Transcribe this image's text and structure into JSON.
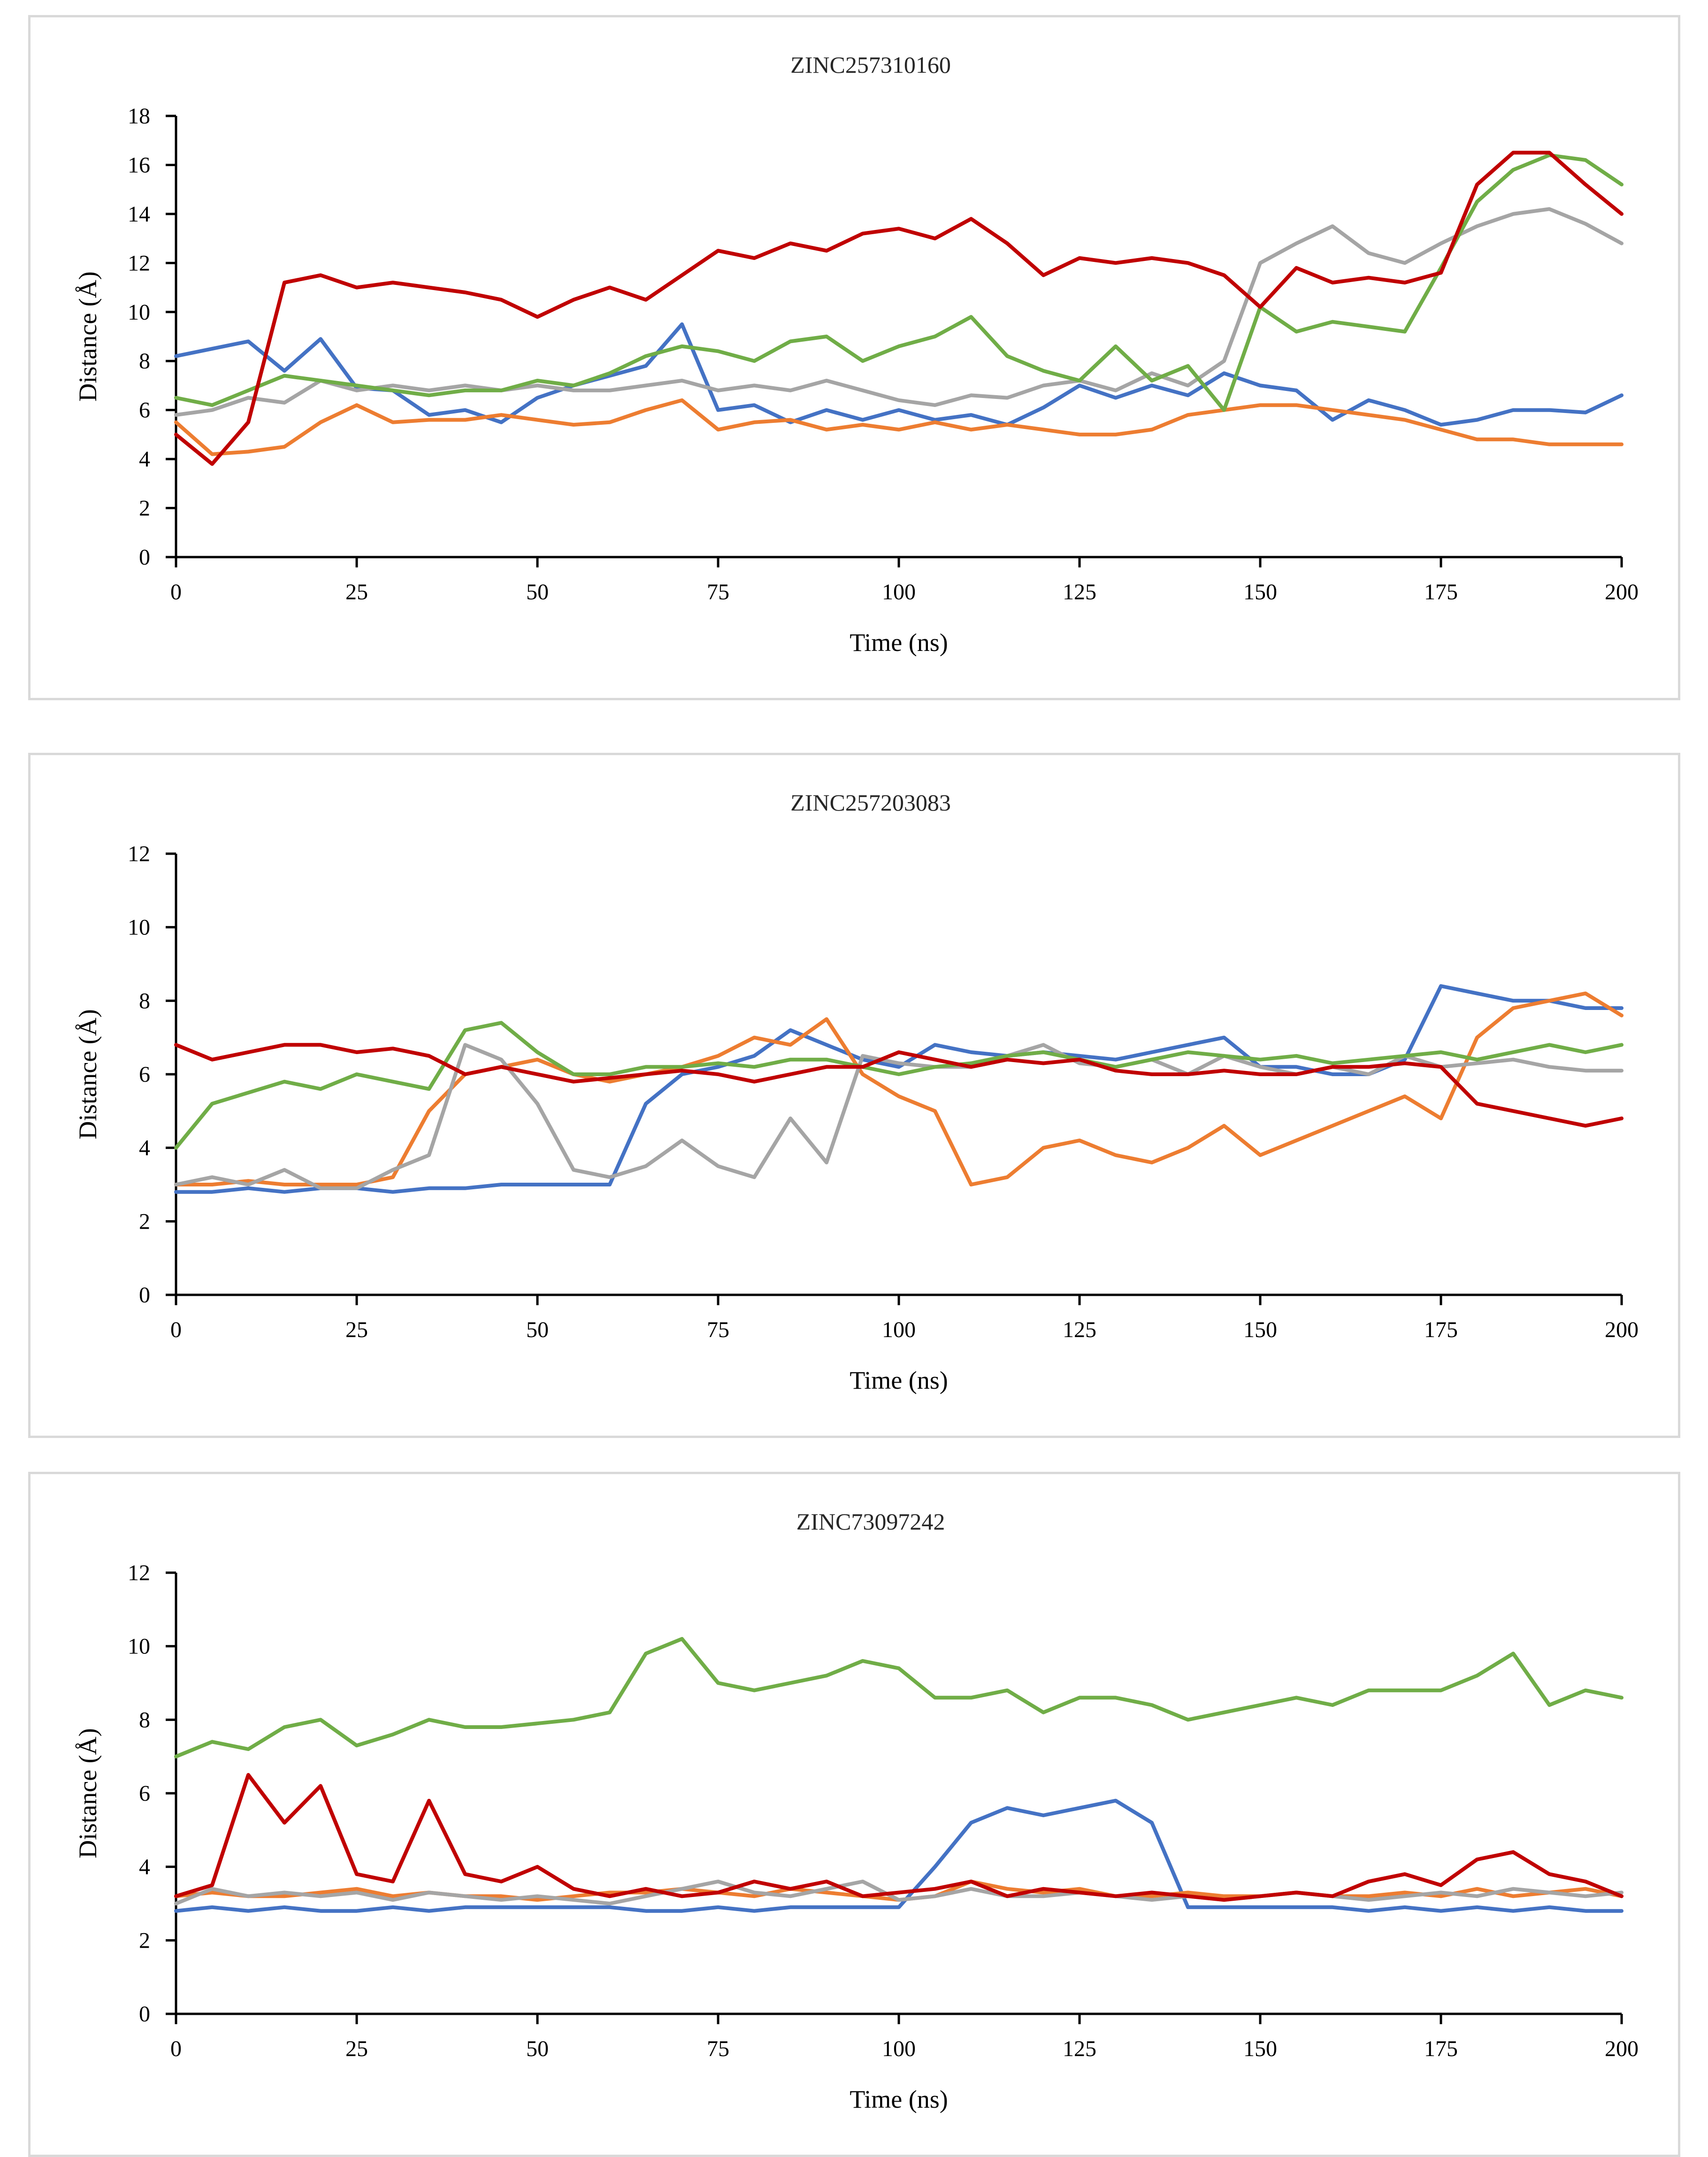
{
  "chart_data": [
    {
      "type": "line",
      "title": "ZINC257310160",
      "xlabel": "Time (ns)",
      "ylabel": "Distance (Å)",
      "xlim": [
        0,
        200
      ],
      "ylim": [
        0,
        18
      ],
      "xticks": [
        0,
        25,
        50,
        75,
        100,
        125,
        150,
        175,
        200
      ],
      "yticks": [
        0,
        2,
        4,
        6,
        8,
        10,
        12,
        14,
        16,
        18
      ],
      "x": [
        0,
        5,
        10,
        15,
        20,
        25,
        30,
        35,
        40,
        45,
        50,
        55,
        60,
        65,
        70,
        75,
        80,
        85,
        90,
        95,
        100,
        105,
        110,
        115,
        120,
        125,
        130,
        135,
        140,
        145,
        150,
        155,
        160,
        165,
        170,
        175,
        180,
        185,
        190,
        195,
        200
      ],
      "series": [
        {
          "name": "blue",
          "color": "#4472C4",
          "values": [
            8.2,
            8.5,
            8.8,
            7.6,
            8.9,
            6.9,
            6.8,
            5.8,
            6.0,
            5.5,
            6.5,
            7.0,
            7.4,
            7.8,
            9.5,
            6.0,
            6.2,
            5.5,
            6.0,
            5.6,
            6.0,
            5.6,
            5.8,
            5.4,
            6.1,
            7.0,
            6.5,
            7.0,
            6.6,
            7.5,
            7.0,
            6.8,
            5.6,
            6.4,
            6.0,
            5.4,
            5.6,
            6.0,
            6.0,
            5.9,
            6.6
          ]
        },
        {
          "name": "orange",
          "color": "#ED7D31",
          "values": [
            5.5,
            4.2,
            4.3,
            4.5,
            5.5,
            6.2,
            5.5,
            5.6,
            5.6,
            5.8,
            5.6,
            5.4,
            5.5,
            6.0,
            6.4,
            5.2,
            5.5,
            5.6,
            5.2,
            5.4,
            5.2,
            5.5,
            5.2,
            5.4,
            5.2,
            5.0,
            5.0,
            5.2,
            5.8,
            6.0,
            6.2,
            6.2,
            6.0,
            5.8,
            5.6,
            5.2,
            4.8,
            4.8,
            4.6,
            4.6,
            4.6
          ]
        },
        {
          "name": "gray",
          "color": "#A5A5A5",
          "values": [
            5.8,
            6.0,
            6.5,
            6.3,
            7.2,
            6.8,
            7.0,
            6.8,
            7.0,
            6.8,
            7.0,
            6.8,
            6.8,
            7.0,
            7.2,
            6.8,
            7.0,
            6.8,
            7.2,
            6.8,
            6.4,
            6.2,
            6.6,
            6.5,
            7.0,
            7.2,
            6.8,
            7.5,
            7.0,
            8.0,
            12.0,
            12.8,
            13.5,
            12.4,
            12.0,
            12.8,
            13.5,
            14.0,
            14.2,
            13.6,
            12.8
          ]
        },
        {
          "name": "green",
          "color": "#70AD47",
          "values": [
            6.5,
            6.2,
            6.8,
            7.4,
            7.2,
            7.0,
            6.8,
            6.6,
            6.8,
            6.8,
            7.2,
            7.0,
            7.5,
            8.2,
            8.6,
            8.4,
            8.0,
            8.8,
            9.0,
            8.0,
            8.6,
            9.0,
            9.8,
            8.2,
            7.6,
            7.2,
            8.6,
            7.2,
            7.8,
            6.0,
            10.2,
            9.2,
            9.6,
            9.4,
            9.2,
            11.8,
            14.5,
            15.8,
            16.4,
            16.2,
            15.2
          ]
        },
        {
          "name": "red",
          "color": "#C00000",
          "values": [
            5.0,
            3.8,
            5.5,
            11.2,
            11.5,
            11.0,
            11.2,
            11.0,
            10.8,
            10.5,
            9.8,
            10.5,
            11.0,
            10.5,
            11.5,
            12.5,
            12.2,
            12.8,
            12.5,
            13.2,
            13.4,
            13.0,
            13.8,
            12.8,
            11.5,
            12.2,
            12.0,
            12.2,
            12.0,
            11.5,
            10.2,
            11.8,
            11.2,
            11.4,
            11.2,
            11.6,
            15.2,
            16.5,
            16.5,
            15.2,
            14.0
          ]
        }
      ]
    },
    {
      "type": "line",
      "title": "ZINC257203083",
      "xlabel": "Time (ns)",
      "ylabel": "Distance (Å)",
      "xlim": [
        0,
        200
      ],
      "ylim": [
        0,
        12
      ],
      "xticks": [
        0,
        25,
        50,
        75,
        100,
        125,
        150,
        175,
        200
      ],
      "yticks": [
        0,
        2,
        4,
        6,
        8,
        10,
        12
      ],
      "x": [
        0,
        5,
        10,
        15,
        20,
        25,
        30,
        35,
        40,
        45,
        50,
        55,
        60,
        65,
        70,
        75,
        80,
        85,
        90,
        95,
        100,
        105,
        110,
        115,
        120,
        125,
        130,
        135,
        140,
        145,
        150,
        155,
        160,
        165,
        170,
        175,
        180,
        185,
        190,
        195,
        200
      ],
      "series": [
        {
          "name": "blue",
          "color": "#4472C4",
          "values": [
            2.8,
            2.8,
            2.9,
            2.8,
            2.9,
            2.9,
            2.8,
            2.9,
            2.9,
            3.0,
            3.0,
            3.0,
            3.0,
            5.2,
            6.0,
            6.2,
            6.5,
            7.2,
            6.8,
            6.4,
            6.2,
            6.8,
            6.6,
            6.5,
            6.6,
            6.5,
            6.4,
            6.6,
            6.8,
            7.0,
            6.2,
            6.2,
            6.0,
            6.0,
            6.4,
            8.4,
            8.2,
            8.0,
            8.0,
            7.8,
            7.8
          ]
        },
        {
          "name": "orange",
          "color": "#ED7D31",
          "values": [
            3.0,
            3.0,
            3.1,
            3.0,
            3.0,
            3.0,
            3.2,
            5.0,
            6.0,
            6.2,
            6.4,
            6.0,
            5.8,
            6.0,
            6.2,
            6.5,
            7.0,
            6.8,
            7.5,
            6.0,
            5.4,
            5.0,
            3.0,
            3.2,
            4.0,
            4.2,
            3.8,
            3.6,
            4.0,
            4.6,
            3.8,
            4.2,
            4.6,
            5.0,
            5.4,
            4.8,
            7.0,
            7.8,
            8.0,
            8.2,
            7.6
          ]
        },
        {
          "name": "gray",
          "color": "#A5A5A5",
          "values": [
            3.0,
            3.2,
            3.0,
            3.4,
            2.9,
            2.9,
            3.4,
            3.8,
            6.8,
            6.4,
            5.2,
            3.4,
            3.2,
            3.5,
            4.2,
            3.5,
            3.2,
            4.8,
            3.6,
            6.5,
            6.3,
            6.2,
            6.2,
            6.5,
            6.8,
            6.3,
            6.2,
            6.4,
            6.0,
            6.5,
            6.2,
            6.0,
            6.2,
            6.0,
            6.5,
            6.2,
            6.3,
            6.4,
            6.2,
            6.1,
            6.1
          ]
        },
        {
          "name": "green",
          "color": "#70AD47",
          "values": [
            4.0,
            5.2,
            5.5,
            5.8,
            5.6,
            6.0,
            5.8,
            5.6,
            7.2,
            7.4,
            6.6,
            6.0,
            6.0,
            6.2,
            6.2,
            6.3,
            6.2,
            6.4,
            6.4,
            6.2,
            6.0,
            6.2,
            6.3,
            6.5,
            6.6,
            6.4,
            6.2,
            6.4,
            6.6,
            6.5,
            6.4,
            6.5,
            6.3,
            6.4,
            6.5,
            6.6,
            6.4,
            6.6,
            6.8,
            6.6,
            6.8
          ]
        },
        {
          "name": "red",
          "color": "#C00000",
          "values": [
            6.8,
            6.4,
            6.6,
            6.8,
            6.8,
            6.6,
            6.7,
            6.5,
            6.0,
            6.2,
            6.0,
            5.8,
            5.9,
            6.0,
            6.1,
            6.0,
            5.8,
            6.0,
            6.2,
            6.2,
            6.6,
            6.4,
            6.2,
            6.4,
            6.3,
            6.4,
            6.1,
            6.0,
            6.0,
            6.1,
            6.0,
            6.0,
            6.2,
            6.2,
            6.3,
            6.2,
            5.2,
            5.0,
            4.8,
            4.6,
            4.8
          ]
        }
      ]
    },
    {
      "type": "line",
      "title": "ZINC73097242",
      "xlabel": "Time (ns)",
      "ylabel": "Distance (Å)",
      "xlim": [
        0,
        200
      ],
      "ylim": [
        0,
        12
      ],
      "xticks": [
        0,
        25,
        50,
        75,
        100,
        125,
        150,
        175,
        200
      ],
      "yticks": [
        0,
        2,
        4,
        6,
        8,
        10,
        12
      ],
      "x": [
        0,
        5,
        10,
        15,
        20,
        25,
        30,
        35,
        40,
        45,
        50,
        55,
        60,
        65,
        70,
        75,
        80,
        85,
        90,
        95,
        100,
        105,
        110,
        115,
        120,
        125,
        130,
        135,
        140,
        145,
        150,
        155,
        160,
        165,
        170,
        175,
        180,
        185,
        190,
        195,
        200
      ],
      "series": [
        {
          "name": "blue",
          "color": "#4472C4",
          "values": [
            2.8,
            2.9,
            2.8,
            2.9,
            2.8,
            2.8,
            2.9,
            2.8,
            2.9,
            2.9,
            2.9,
            2.9,
            2.9,
            2.8,
            2.8,
            2.9,
            2.8,
            2.9,
            2.9,
            2.9,
            2.9,
            4.0,
            5.2,
            5.6,
            5.4,
            5.6,
            5.8,
            5.2,
            2.9,
            2.9,
            2.9,
            2.9,
            2.9,
            2.8,
            2.9,
            2.8,
            2.9,
            2.8,
            2.9,
            2.8,
            2.8
          ]
        },
        {
          "name": "orange",
          "color": "#ED7D31",
          "values": [
            3.2,
            3.3,
            3.2,
            3.2,
            3.3,
            3.4,
            3.2,
            3.3,
            3.2,
            3.2,
            3.1,
            3.2,
            3.3,
            3.3,
            3.4,
            3.3,
            3.2,
            3.4,
            3.3,
            3.2,
            3.1,
            3.2,
            3.6,
            3.4,
            3.3,
            3.4,
            3.2,
            3.2,
            3.3,
            3.2,
            3.2,
            3.3,
            3.2,
            3.2,
            3.3,
            3.2,
            3.4,
            3.2,
            3.3,
            3.4,
            3.2
          ]
        },
        {
          "name": "gray",
          "color": "#A5A5A5",
          "values": [
            3.0,
            3.4,
            3.2,
            3.3,
            3.2,
            3.3,
            3.1,
            3.3,
            3.2,
            3.1,
            3.2,
            3.1,
            3.0,
            3.2,
            3.4,
            3.6,
            3.3,
            3.2,
            3.4,
            3.6,
            3.1,
            3.2,
            3.4,
            3.2,
            3.2,
            3.3,
            3.2,
            3.1,
            3.2,
            3.1,
            3.2,
            3.3,
            3.2,
            3.1,
            3.2,
            3.3,
            3.2,
            3.4,
            3.3,
            3.2,
            3.3
          ]
        },
        {
          "name": "green",
          "color": "#70AD47",
          "values": [
            7.0,
            7.4,
            7.2,
            7.8,
            8.0,
            7.3,
            7.6,
            8.0,
            7.8,
            7.8,
            7.9,
            8.0,
            8.2,
            9.8,
            10.2,
            9.0,
            8.8,
            9.0,
            9.2,
            9.6,
            9.4,
            8.6,
            8.6,
            8.8,
            8.2,
            8.6,
            8.6,
            8.4,
            8.0,
            8.2,
            8.4,
            8.6,
            8.4,
            8.8,
            8.8,
            8.8,
            9.2,
            9.8,
            8.4,
            8.8,
            8.6
          ]
        },
        {
          "name": "red",
          "color": "#C00000",
          "values": [
            3.2,
            3.5,
            6.5,
            5.2,
            6.2,
            3.8,
            3.6,
            5.8,
            3.8,
            3.6,
            4.0,
            3.4,
            3.2,
            3.4,
            3.2,
            3.3,
            3.6,
            3.4,
            3.6,
            3.2,
            3.3,
            3.4,
            3.6,
            3.2,
            3.4,
            3.3,
            3.2,
            3.3,
            3.2,
            3.1,
            3.2,
            3.3,
            3.2,
            3.6,
            3.8,
            3.5,
            4.2,
            4.4,
            3.8,
            3.6,
            3.2
          ]
        }
      ]
    }
  ]
}
